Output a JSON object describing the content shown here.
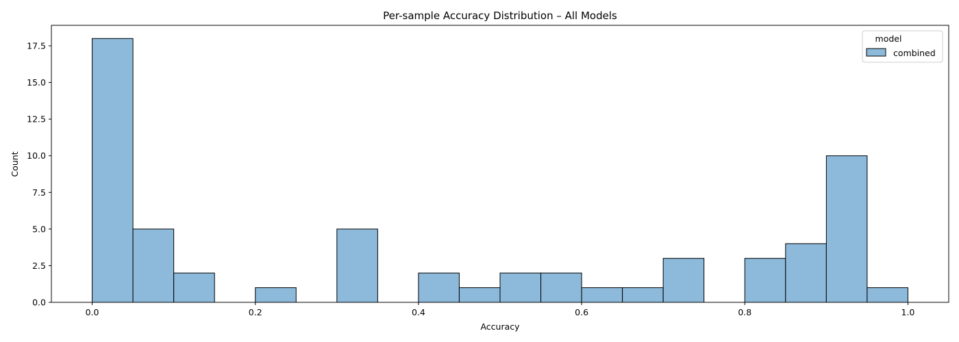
{
  "chart_data": {
    "type": "bar",
    "title": "Per-sample Accuracy Distribution – All Models",
    "xlabel": "Accuracy",
    "ylabel": "Count",
    "xlim": [
      -0.05,
      1.05
    ],
    "ylim": [
      0,
      18.9
    ],
    "xticks": [
      0.0,
      0.2,
      0.4,
      0.6,
      0.8,
      1.0
    ],
    "xtick_labels": [
      "0.0",
      "0.2",
      "0.4",
      "0.6",
      "0.8",
      "1.0"
    ],
    "yticks": [
      0,
      2.5,
      5,
      7.5,
      10,
      12.5,
      15,
      17.5
    ],
    "ytick_labels": [
      "0.0",
      "2.5",
      "5.0",
      "7.5",
      "10.0",
      "12.5",
      "15.0",
      "17.5"
    ],
    "grid": false,
    "legend": {
      "title": "model",
      "position": "top-right"
    },
    "series": [
      {
        "name": "combined",
        "color": "#8db9da",
        "edgecolor": "#000000",
        "bins": [
          {
            "x0": 0.0,
            "x1": 0.05,
            "count": 18
          },
          {
            "x0": 0.05,
            "x1": 0.1,
            "count": 5
          },
          {
            "x0": 0.1,
            "x1": 0.15,
            "count": 2
          },
          {
            "x0": 0.15,
            "x1": 0.2,
            "count": 0
          },
          {
            "x0": 0.2,
            "x1": 0.25,
            "count": 1
          },
          {
            "x0": 0.25,
            "x1": 0.3,
            "count": 0
          },
          {
            "x0": 0.3,
            "x1": 0.35,
            "count": 5
          },
          {
            "x0": 0.35,
            "x1": 0.4,
            "count": 0
          },
          {
            "x0": 0.4,
            "x1": 0.45,
            "count": 2
          },
          {
            "x0": 0.45,
            "x1": 0.5,
            "count": 1
          },
          {
            "x0": 0.5,
            "x1": 0.55,
            "count": 2
          },
          {
            "x0": 0.55,
            "x1": 0.6,
            "count": 2
          },
          {
            "x0": 0.6,
            "x1": 0.65,
            "count": 1
          },
          {
            "x0": 0.65,
            "x1": 0.7,
            "count": 1
          },
          {
            "x0": 0.7,
            "x1": 0.75,
            "count": 3
          },
          {
            "x0": 0.75,
            "x1": 0.8,
            "count": 0
          },
          {
            "x0": 0.8,
            "x1": 0.85,
            "count": 3
          },
          {
            "x0": 0.85,
            "x1": 0.9,
            "count": 4
          },
          {
            "x0": 0.9,
            "x1": 0.95,
            "count": 10
          },
          {
            "x0": 0.95,
            "x1": 1.0,
            "count": 1
          }
        ]
      }
    ]
  }
}
